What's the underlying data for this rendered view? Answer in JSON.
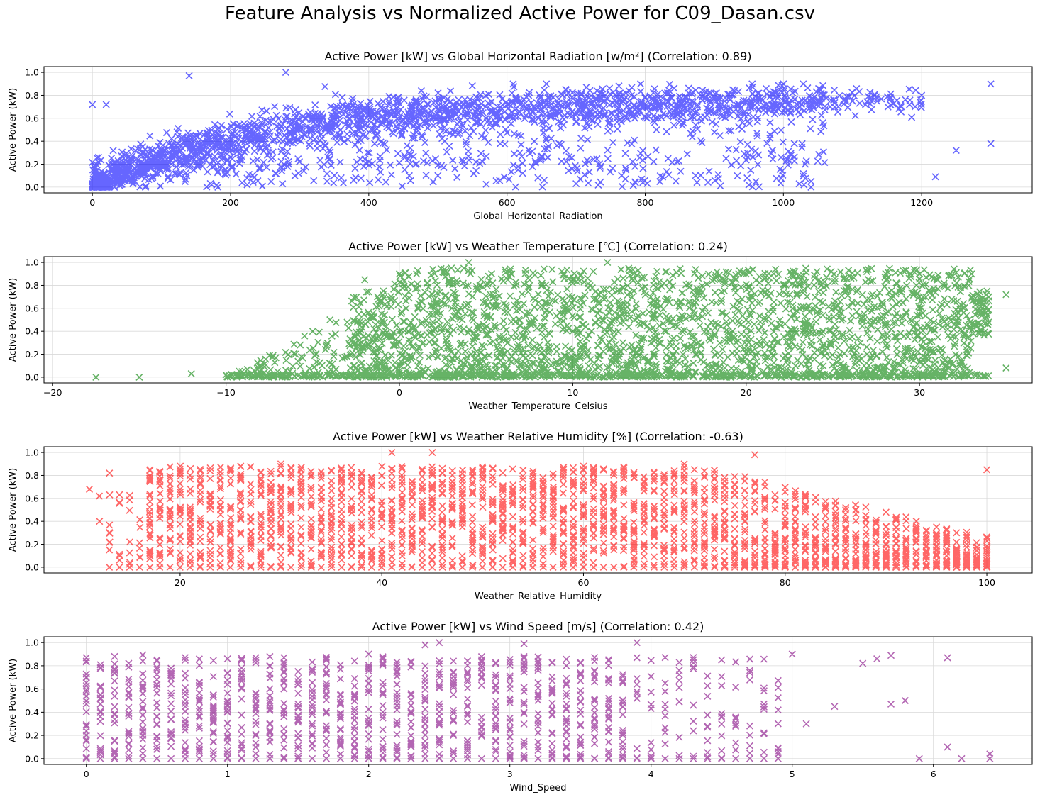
{
  "figure": {
    "suptitle": "Feature Analysis vs Normalized Active Power for C09_Dasan.csv"
  },
  "chart_data": [
    {
      "type": "scatter",
      "title": "Active Power [kW] vs Global Horizontal Radiation [w/m²] (Correlation: 0.89)",
      "xlabel": "Global_Horizontal_Radiation",
      "ylabel": "Active Power (kW)",
      "xlim": [
        -70,
        1360
      ],
      "ylim": [
        -0.05,
        1.05
      ],
      "xticks": [
        0,
        200,
        400,
        600,
        800,
        1000,
        1200
      ],
      "xtick_labels": [
        "0",
        "200",
        "400",
        "600",
        "800",
        "1000",
        "1200"
      ],
      "yticks": [
        0,
        0.2,
        0.4,
        0.6,
        0.8,
        1.0
      ],
      "ytick_labels": [
        "0.0",
        "0.2",
        "0.4",
        "0.6",
        "0.8",
        "1.0"
      ],
      "grid": true,
      "marker": "x",
      "color": "#0000ff",
      "correlation": 0.89,
      "points_approx": [
        [
          0,
          0
        ],
        [
          20,
          0.05
        ],
        [
          50,
          0.1
        ],
        [
          100,
          0.18
        ],
        [
          150,
          0.28
        ],
        [
          200,
          0.36
        ],
        [
          250,
          0.45
        ],
        [
          300,
          0.52
        ],
        [
          400,
          0.62
        ],
        [
          500,
          0.68
        ],
        [
          600,
          0.72
        ],
        [
          700,
          0.75
        ],
        [
          800,
          0.78
        ],
        [
          900,
          0.77
        ],
        [
          1000,
          0.75
        ],
        [
          1100,
          0.75
        ],
        [
          1200,
          0.8
        ],
        [
          1300,
          0.9
        ],
        [
          1300,
          0.38
        ],
        [
          280,
          1.0
        ],
        [
          140,
          0.97
        ],
        [
          0,
          0.72
        ],
        [
          20,
          0.72
        ],
        [
          1220,
          0.09
        ],
        [
          1250,
          0.32
        ],
        [
          1040,
          0.0
        ],
        [
          950,
          0.02
        ],
        [
          700,
          0.03
        ],
        [
          500,
          0.1
        ]
      ]
    },
    {
      "type": "scatter",
      "title": "Active Power [kW] vs Weather Temperature [℃] (Correlation: 0.24)",
      "xlabel": "Weather_Temperature_Celsius",
      "ylabel": "Active Power (kW)",
      "xlim": [
        -20.5,
        36.5
      ],
      "ylim": [
        -0.05,
        1.05
      ],
      "xticks": [
        -20,
        -10,
        0,
        10,
        20,
        30
      ],
      "xtick_labels": [
        "−20",
        "−10",
        "0",
        "10",
        "20",
        "30"
      ],
      "yticks": [
        0,
        0.2,
        0.4,
        0.6,
        0.8,
        1.0
      ],
      "ytick_labels": [
        "0.0",
        "0.2",
        "0.4",
        "0.6",
        "0.8",
        "1.0"
      ],
      "grid": true,
      "marker": "x",
      "color": "#008000",
      "correlation": 0.24,
      "points_approx": [
        [
          -17.5,
          0
        ],
        [
          -15,
          0
        ],
        [
          -12,
          0.03
        ],
        [
          -10,
          0.02
        ],
        [
          -8,
          0.1
        ],
        [
          -6,
          0.2
        ],
        [
          -5,
          0.4
        ],
        [
          -4,
          0.5
        ],
        [
          -2,
          0.85
        ],
        [
          0,
          0.9
        ],
        [
          3,
          0.95
        ],
        [
          4,
          1.0
        ],
        [
          12,
          1.0
        ],
        [
          20,
          0.9
        ],
        [
          30,
          0.9
        ],
        [
          33,
          0.9
        ],
        [
          34,
          0.7
        ],
        [
          35,
          0.72
        ],
        [
          35,
          0.08
        ],
        [
          10,
          0.4
        ],
        [
          20,
          0.5
        ],
        [
          30,
          0.6
        ],
        [
          0,
          0.02
        ],
        [
          20,
          0.01
        ]
      ]
    },
    {
      "type": "scatter",
      "title": "Active Power [kW] vs Weather Relative Humidity [%] (Correlation: -0.63)",
      "xlabel": "Weather_Relative_Humidity",
      "ylabel": "Active Power (kW)",
      "xlim": [
        6.5,
        104.5
      ],
      "ylim": [
        -0.05,
        1.05
      ],
      "xticks": [
        20,
        40,
        60,
        80,
        100
      ],
      "xtick_labels": [
        "20",
        "40",
        "60",
        "80",
        "100"
      ],
      "yticks": [
        0,
        0.2,
        0.4,
        0.6,
        0.8,
        1.0
      ],
      "ytick_labels": [
        "0.0",
        "0.2",
        "0.4",
        "0.6",
        "0.8",
        "1.0"
      ],
      "grid": true,
      "marker": "x",
      "color": "#ff0000",
      "correlation": -0.63,
      "points_approx": [
        [
          11,
          0.68
        ],
        [
          12,
          0.62
        ],
        [
          12,
          0.4
        ],
        [
          13,
          0.82
        ],
        [
          13,
          0.15
        ],
        [
          15,
          0.22
        ],
        [
          17,
          0.85
        ],
        [
          20,
          0.88
        ],
        [
          30,
          0.9
        ],
        [
          41,
          1.0
        ],
        [
          45,
          1.0
        ],
        [
          60,
          0.88
        ],
        [
          70,
          0.9
        ],
        [
          77,
          0.98
        ],
        [
          80,
          0.5
        ],
        [
          85,
          0.4
        ],
        [
          90,
          0.35
        ],
        [
          95,
          0.28
        ],
        [
          100,
          0.85
        ],
        [
          100,
          0.0
        ]
      ]
    },
    {
      "type": "scatter",
      "title": "Active Power [kW] vs Wind Speed [m/s] (Correlation: 0.42)",
      "xlabel": "Wind_Speed",
      "ylabel": "Active Power (kW)",
      "xlim": [
        -0.3,
        6.7
      ],
      "ylim": [
        -0.05,
        1.05
      ],
      "xticks": [
        0,
        1,
        2,
        3,
        4,
        5,
        6
      ],
      "xtick_labels": [
        "0",
        "1",
        "2",
        "3",
        "4",
        "5",
        "6"
      ],
      "yticks": [
        0,
        0.2,
        0.4,
        0.6,
        0.8,
        1.0
      ],
      "ytick_labels": [
        "0.0",
        "0.2",
        "0.4",
        "0.6",
        "0.8",
        "1.0"
      ],
      "grid": true,
      "marker": "x",
      "color": "#800080",
      "correlation": 0.42,
      "points_approx": [
        [
          0,
          0.87
        ],
        [
          0.5,
          0.85
        ],
        [
          1,
          0.86
        ],
        [
          2,
          0.9
        ],
        [
          2.4,
          0.98
        ],
        [
          2.5,
          1.0
        ],
        [
          3.1,
          0.99
        ],
        [
          3.9,
          1.0
        ],
        [
          4.5,
          0.85
        ],
        [
          5.0,
          0.9
        ],
        [
          5.5,
          0.82
        ],
        [
          5.6,
          0.86
        ],
        [
          5.7,
          0.89
        ],
        [
          5.7,
          0.47
        ],
        [
          5.8,
          0.5
        ],
        [
          6.1,
          0.87
        ],
        [
          6.1,
          0.1
        ],
        [
          6.2,
          0.0
        ],
        [
          6.4,
          0.04
        ],
        [
          6.4,
          0.0
        ],
        [
          5.9,
          0.0
        ],
        [
          5.3,
          0.45
        ],
        [
          5.1,
          0.3
        ]
      ]
    }
  ]
}
